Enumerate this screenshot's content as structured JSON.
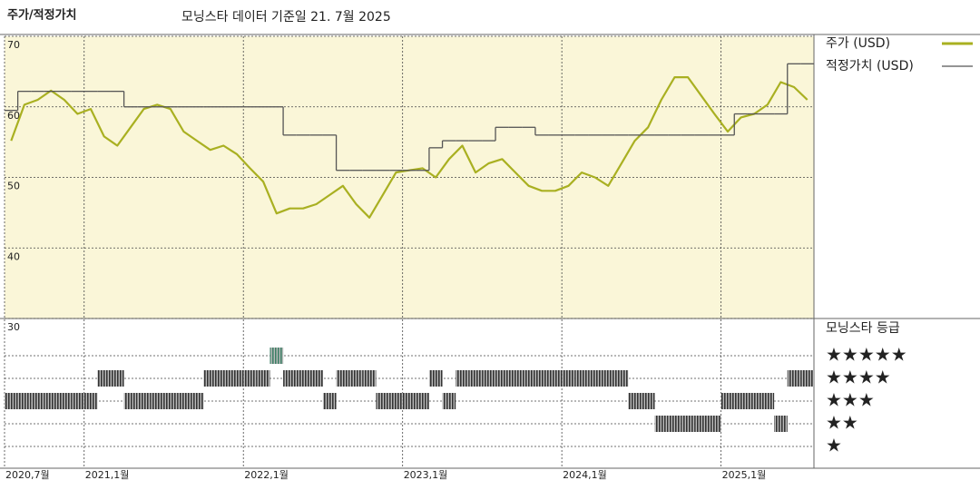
{
  "chart_data": [
    {
      "type": "line",
      "title": "주가/적정가치",
      "subtitle": "모닝스타 데이터 기준일 21. 7월 2025",
      "x": [
        "2020-07",
        "2020-08",
        "2020-09",
        "2020-10",
        "2020-11",
        "2020-12",
        "2021-01",
        "2021-02",
        "2021-03",
        "2021-04",
        "2021-05",
        "2021-06",
        "2021-07",
        "2021-08",
        "2021-09",
        "2021-10",
        "2021-11",
        "2021-12",
        "2022-01",
        "2022-02",
        "2022-03",
        "2022-04",
        "2022-05",
        "2022-06",
        "2022-07",
        "2022-08",
        "2022-09",
        "2022-10",
        "2022-11",
        "2022-12",
        "2023-01",
        "2023-02",
        "2023-03",
        "2023-04",
        "2023-05",
        "2023-06",
        "2023-07",
        "2023-08",
        "2023-09",
        "2023-10",
        "2023-11",
        "2023-12",
        "2024-01",
        "2024-02",
        "2024-03",
        "2024-04",
        "2024-05",
        "2024-06",
        "2024-07",
        "2024-08",
        "2024-09",
        "2024-10",
        "2024-11",
        "2024-12",
        "2025-01",
        "2025-02",
        "2025-03",
        "2025-04",
        "2025-05",
        "2025-06",
        "2025-07"
      ],
      "series": [
        {
          "name": "주가 (USD)",
          "color": "#a9b021",
          "style": "line",
          "values": [
            55.2,
            60.3,
            61,
            62.3,
            61,
            59,
            59.7,
            55.8,
            54.5,
            57.1,
            59.7,
            60.3,
            59.7,
            56.5,
            55.2,
            53.9,
            54.5,
            53.3,
            51.3,
            49.4,
            44.9,
            45.6,
            45.6,
            46.2,
            47.5,
            48.8,
            46.2,
            44.3,
            47.5,
            50.7,
            51,
            51.3,
            50,
            52.6,
            54.5,
            50.7,
            52,
            52.6,
            50.7,
            48.8,
            48.1,
            48.1,
            48.8,
            50.7,
            50,
            48.8,
            52,
            55.2,
            57.1,
            61,
            64.2,
            64.2,
            61.6,
            59,
            56.5,
            58.5,
            59,
            60.3,
            63.5,
            62.8,
            61
          ]
        },
        {
          "name": "적정가치 (USD)",
          "color": "#555555",
          "style": "step",
          "values": [
            59.5,
            62.2,
            62.2,
            62.2,
            62.2,
            62.2,
            62.2,
            62.2,
            62.2,
            60,
            60,
            60,
            60,
            60,
            60,
            60,
            60,
            60,
            60,
            60,
            60,
            56,
            56,
            56,
            56,
            51,
            51,
            51,
            51,
            51,
            51,
            51,
            54.2,
            55.2,
            55.2,
            55.2,
            55.2,
            57.1,
            57.1,
            57.1,
            56,
            56,
            56,
            56,
            56,
            56,
            56,
            56,
            56,
            56,
            56,
            56,
            56,
            56,
            56,
            59,
            59,
            59,
            59,
            66.1,
            66.1
          ]
        }
      ],
      "xlim": [
        "2020-07",
        "2025-08"
      ],
      "xticks": [
        {
          "value": "2020-07",
          "label": "2020,7월"
        },
        {
          "value": "2021-01",
          "label": "2021,1월"
        },
        {
          "value": "2022-01",
          "label": "2022,1월"
        },
        {
          "value": "2023-01",
          "label": "2023,1월"
        },
        {
          "value": "2024-01",
          "label": "2024,1월"
        },
        {
          "value": "2025-01",
          "label": "2025,1월"
        }
      ],
      "ylim": [
        30,
        70
      ],
      "yticks": [
        30,
        40,
        50,
        60,
        70
      ],
      "grid": true
    },
    {
      "type": "rating",
      "title": "모닝스타 등급",
      "levels": [
        5,
        4,
        3,
        2,
        1
      ],
      "level_labels": [
        "★★★★★",
        "★★★★",
        "★★★",
        "★★",
        "★"
      ],
      "level_colors": [
        "#3d7f66",
        "#333333",
        "#333333",
        "#333333",
        "#333333"
      ],
      "values": [
        3,
        3,
        3,
        3,
        3,
        3,
        3,
        4,
        4,
        3,
        3,
        3,
        3,
        3,
        3,
        4,
        4,
        4,
        4,
        4,
        5,
        4,
        4,
        4,
        3,
        4,
        4,
        4,
        3,
        3,
        3,
        3,
        4,
        3,
        4,
        4,
        4,
        4,
        4,
        4,
        4,
        4,
        4,
        4,
        4,
        4,
        4,
        3,
        3,
        2,
        2,
        2,
        2,
        2,
        3,
        3,
        3,
        3,
        2,
        4,
        4
      ]
    }
  ]
}
